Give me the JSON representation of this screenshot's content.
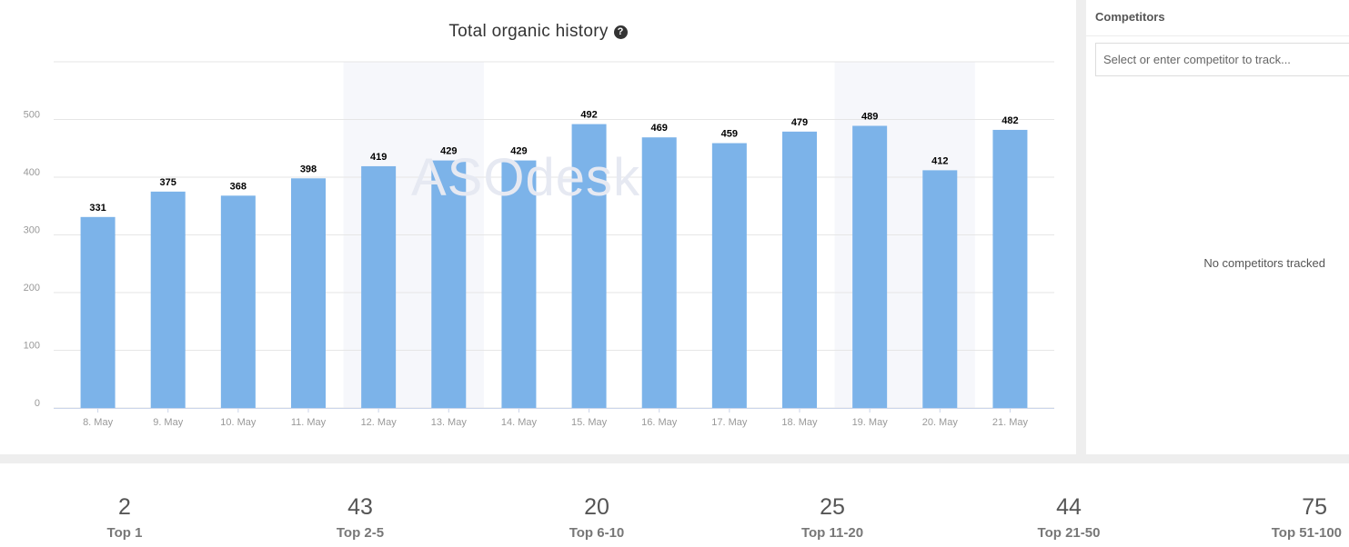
{
  "chart": {
    "title": "Total organic history",
    "help_icon": "question-circle-icon",
    "watermark": "ASOdesk"
  },
  "chart_data": {
    "type": "bar",
    "title": "Total organic history",
    "categories": [
      "8. May",
      "9. May",
      "10. May",
      "11. May",
      "12. May",
      "13. May",
      "14. May",
      "15. May",
      "16. May",
      "17. May",
      "18. May",
      "19. May",
      "20. May",
      "21. May"
    ],
    "values": [
      331,
      375,
      368,
      398,
      419,
      429,
      429,
      492,
      469,
      459,
      479,
      489,
      412,
      482
    ],
    "y_ticks": [
      0,
      100,
      200,
      300,
      400,
      500
    ],
    "ylim": [
      0,
      600
    ],
    "weekend_bands": [
      [
        "12. May",
        "13. May"
      ],
      [
        "19. May",
        "20. May"
      ]
    ],
    "bar_color": "#7cb3e9",
    "band_color": "#f6f7fb",
    "xlabel": "",
    "ylabel": ""
  },
  "competitors": {
    "title": "Competitors",
    "input_placeholder": "Select or enter competitor to track...",
    "empty_message": "No competitors tracked"
  },
  "stats": [
    {
      "value": "2",
      "label": "Top 1"
    },
    {
      "value": "43",
      "label": "Top 2-5"
    },
    {
      "value": "20",
      "label": "Top 6-10"
    },
    {
      "value": "25",
      "label": "Top 11-20"
    },
    {
      "value": "44",
      "label": "Top 21-50"
    },
    {
      "value": "75",
      "label": "Top 51-100"
    }
  ]
}
